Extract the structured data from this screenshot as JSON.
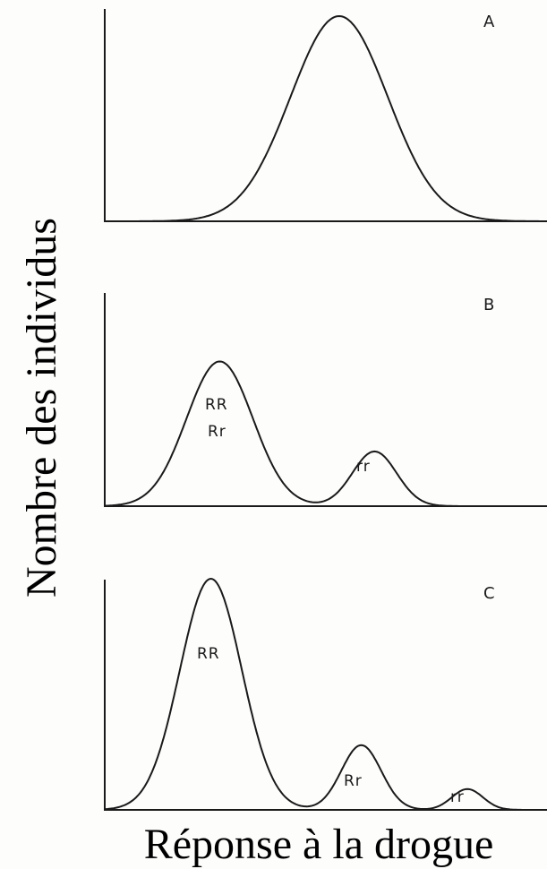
{
  "chart_data": [
    {
      "type": "line",
      "panel": "A",
      "x": [
        0.0,
        0.1,
        0.2,
        0.3,
        0.4,
        0.5,
        0.6,
        0.7,
        0.8,
        0.9,
        1.0
      ],
      "series": [
        {
          "peaks": [
            {
              "center": 0.53,
              "height": 1.0,
              "width": 0.11
            }
          ]
        }
      ],
      "labels": []
    },
    {
      "type": "line",
      "panel": "B",
      "series": [
        {
          "peaks": [
            {
              "center": 0.26,
              "height": 0.82,
              "width": 0.075,
              "label_lines": [
                "RR",
                "Rr"
              ]
            },
            {
              "center": 0.61,
              "height": 0.31,
              "width": 0.05,
              "label_lines": [
                "rr"
              ]
            }
          ]
        }
      ]
    },
    {
      "type": "line",
      "panel": "C",
      "series": [
        {
          "peaks": [
            {
              "center": 0.24,
              "height": 1.0,
              "width": 0.07,
              "label_lines": [
                "RR"
              ]
            },
            {
              "center": 0.58,
              "height": 0.28,
              "width": 0.045,
              "label_lines": [
                "Rr"
              ]
            },
            {
              "center": 0.82,
              "height": 0.09,
              "width": 0.035,
              "label_lines": [
                "rr"
              ]
            }
          ]
        }
      ]
    }
  ],
  "xlabel": "Réponse à la drogue",
  "ylabel": "Nombre des individus",
  "panel_letters": [
    "A",
    "B",
    "C"
  ]
}
